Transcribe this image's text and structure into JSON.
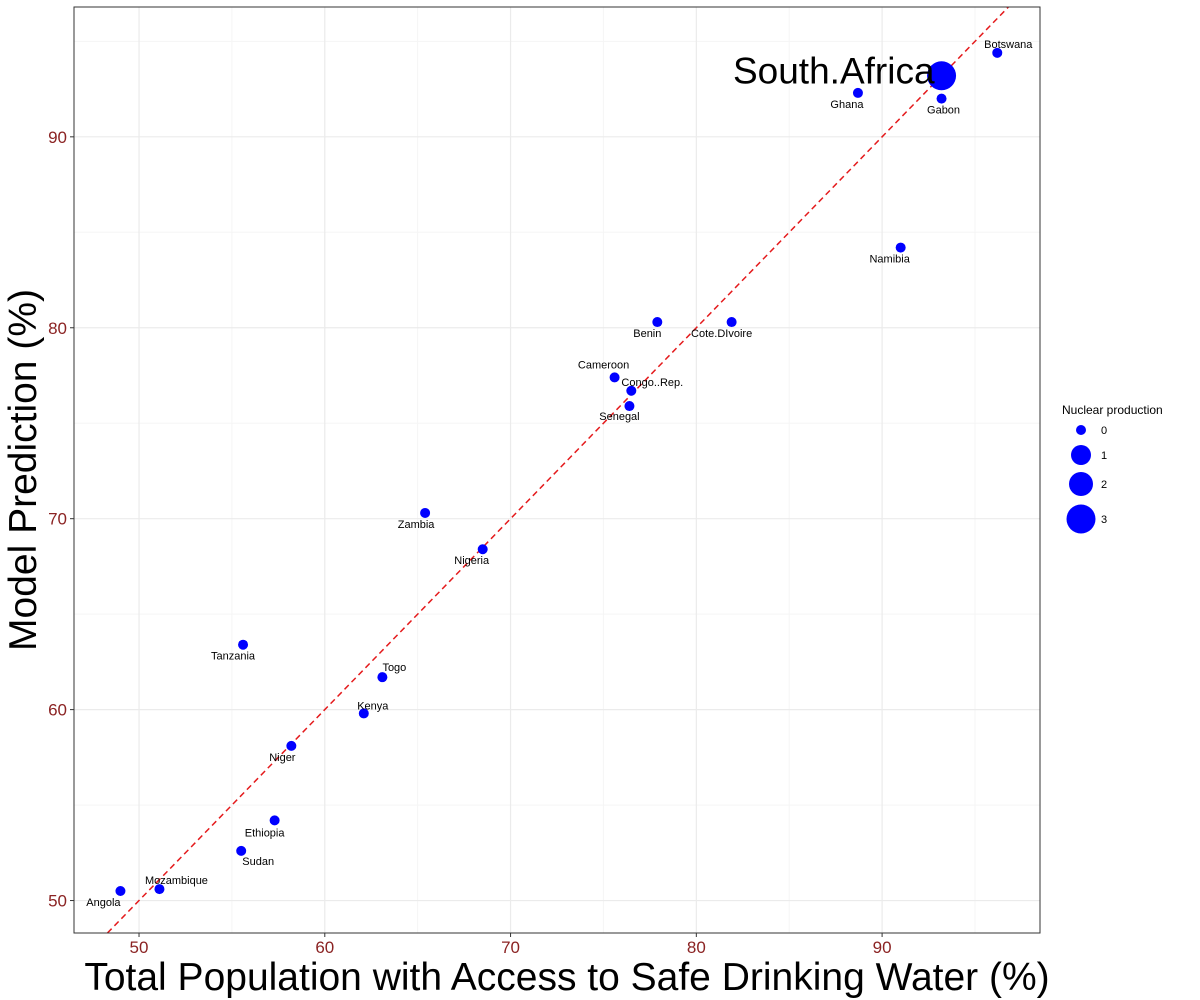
{
  "colors": {
    "point": "#0000ff",
    "tick_label": "#8b2323",
    "ref_line": "#e41a1c",
    "grid_major": "#ebebeb",
    "grid_minor": "#f5f5f5",
    "panel_border": "#333333"
  },
  "chart_data": {
    "type": "scatter",
    "xlabel": "Total Population with Access to Safe Drinking Water (%)",
    "ylabel": "Model Prediction (%)",
    "xlim": [
      46.5,
      98.5
    ],
    "ylim": [
      48.3,
      96.8
    ],
    "xticks": [
      50,
      60,
      70,
      80,
      90
    ],
    "yticks": [
      50,
      60,
      70,
      80,
      90
    ],
    "grid": true,
    "reference_line": {
      "type": "identity",
      "style": "dashed"
    },
    "legend": {
      "title": "Nuclear production",
      "placement": "right",
      "sizes": [
        0,
        1,
        2,
        3
      ]
    },
    "points": [
      {
        "label": "Angola",
        "x": 49.0,
        "y": 50.5,
        "size": 0
      },
      {
        "label": "Mozambique",
        "x": 51.1,
        "y": 50.6,
        "size": 0
      },
      {
        "label": "Sudan",
        "x": 55.5,
        "y": 52.6,
        "size": 0
      },
      {
        "label": "Ethiopia",
        "x": 57.3,
        "y": 54.2,
        "size": 0
      },
      {
        "label": "Niger",
        "x": 58.2,
        "y": 58.1,
        "size": 0
      },
      {
        "label": "Tanzania",
        "x": 55.6,
        "y": 63.4,
        "size": 0
      },
      {
        "label": "Kenya",
        "x": 62.1,
        "y": 59.8,
        "size": 0
      },
      {
        "label": "Togo",
        "x": 63.1,
        "y": 61.7,
        "size": 0
      },
      {
        "label": "Zambia",
        "x": 65.4,
        "y": 70.3,
        "size": 0
      },
      {
        "label": "Nigeria",
        "x": 68.5,
        "y": 68.4,
        "size": 0
      },
      {
        "label": "Cameroon",
        "x": 75.6,
        "y": 77.4,
        "size": 0
      },
      {
        "label": "Congo..Rep.",
        "x": 76.5,
        "y": 76.7,
        "size": 0
      },
      {
        "label": "Senegal",
        "x": 76.4,
        "y": 75.9,
        "size": 0
      },
      {
        "label": "Benin",
        "x": 77.9,
        "y": 80.3,
        "size": 0
      },
      {
        "label": "Cote.DIvoire",
        "x": 81.9,
        "y": 80.3,
        "size": 0
      },
      {
        "label": "Namibia",
        "x": 91.0,
        "y": 84.2,
        "size": 0
      },
      {
        "label": "Ghana",
        "x": 88.7,
        "y": 92.3,
        "size": 0
      },
      {
        "label": "Gabon",
        "x": 93.2,
        "y": 92.0,
        "size": 0
      },
      {
        "label": "Botswana",
        "x": 96.2,
        "y": 94.4,
        "size": 0
      },
      {
        "label": "South.Africa",
        "x": 93.2,
        "y": 93.2,
        "size": 3
      }
    ]
  }
}
